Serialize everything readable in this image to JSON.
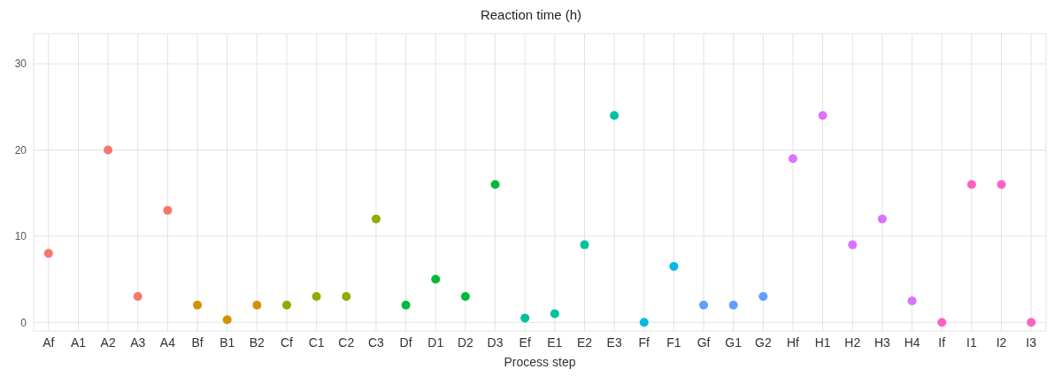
{
  "chart_data": {
    "type": "scatter",
    "title": "Reaction time (h)",
    "xlabel": "Process step",
    "categories": [
      "Af",
      "A1",
      "A2",
      "A3",
      "A4",
      "Bf",
      "B1",
      "B2",
      "Cf",
      "C1",
      "C2",
      "C3",
      "Df",
      "D1",
      "D2",
      "D3",
      "Ef",
      "E1",
      "E2",
      "E3",
      "Ff",
      "F1",
      "Gf",
      "G1",
      "G2",
      "Hf",
      "H1",
      "H2",
      "H3",
      "H4",
      "If",
      "I1",
      "I2",
      "I3"
    ],
    "values": [
      8,
      null,
      20,
      3,
      13,
      2,
      0.3,
      2,
      2,
      3,
      3,
      12,
      2,
      5,
      3,
      16,
      0.5,
      1,
      9,
      24,
      0,
      6.5,
      2,
      2,
      3,
      19,
      24,
      9,
      12,
      2.5,
      0,
      16,
      16,
      0
    ],
    "colors": [
      "#f8766d",
      "#f8766d",
      "#f8766d",
      "#f8766d",
      "#f8766d",
      "#d39200",
      "#d39200",
      "#d39200",
      "#93aa00",
      "#93aa00",
      "#93aa00",
      "#93aa00",
      "#00ba38",
      "#00ba38",
      "#00ba38",
      "#00ba38",
      "#00c19f",
      "#00c19f",
      "#00c19f",
      "#00c19f",
      "#00b9e3",
      "#00b9e3",
      "#619cff",
      "#619cff",
      "#619cff",
      "#db72fb",
      "#db72fb",
      "#db72fb",
      "#db72fb",
      "#db72fb",
      "#ff61c3",
      "#ff61c3",
      "#ff61c3",
      "#ff61c3"
    ],
    "ylim": [
      -1,
      33.5
    ],
    "yticks": [
      0,
      10,
      20,
      30
    ],
    "grid": true,
    "marker": "circle"
  }
}
